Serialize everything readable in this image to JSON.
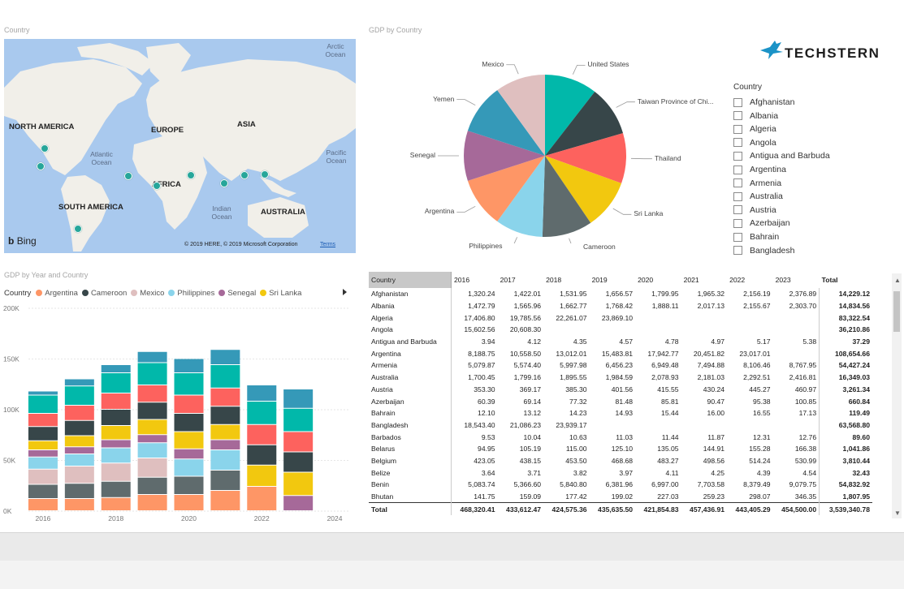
{
  "map": {
    "title": "Country",
    "continents": [
      "NORTH AMERICA",
      "EUROPE",
      "ASIA",
      "AFRICA",
      "SOUTH AMERICA",
      "AUSTRALIA"
    ],
    "oceans": [
      "Arctic Ocean",
      "Atlantic Ocean",
      "Pacific Ocean",
      "Indian Ocean"
    ],
    "bing_label": "Bing",
    "credit": "© 2019 HERE, © 2019 Microsoft Corporation",
    "terms": "Terms"
  },
  "pie": {
    "title": "GDP by Country",
    "chart_data": {
      "type": "pie",
      "categories": [
        "United States",
        "Taiwan Province of Chi...",
        "Thailand",
        "Sri Lanka",
        "Cameroon",
        "Philippines",
        "Argentina",
        "Senegal",
        "Yemen",
        "Mexico"
      ],
      "values": [
        10.5,
        10,
        10,
        10,
        10,
        9.5,
        10,
        10,
        10,
        10
      ],
      "colors": [
        "#01b8aa",
        "#374649",
        "#fd625e",
        "#f2c80f",
        "#5f6b6d",
        "#8ad4eb",
        "#fe9666",
        "#a66999",
        "#3599b8",
        "#dfbfbf"
      ]
    }
  },
  "logo": {
    "text": "TECHSTERN"
  },
  "slicer": {
    "title": "Country",
    "items": [
      "Afghanistan",
      "Albania",
      "Algeria",
      "Angola",
      "Antigua and Barbuda",
      "Argentina",
      "Armenia",
      "Australia",
      "Austria",
      "Azerbaijan",
      "Bahrain",
      "Bangladesh"
    ]
  },
  "bar": {
    "title": "GDP by Year and Country",
    "legend_title": "Country",
    "chart_data": {
      "type": "bar",
      "stacked": true,
      "x": [
        2016,
        2017,
        2018,
        2019,
        2020,
        2021,
        2022,
        2023
      ],
      "series": [
        {
          "name": "Argentina",
          "color": "#fe9666",
          "values": [
            12000,
            12000,
            13000,
            16000,
            16000,
            20000,
            24000,
            0
          ]
        },
        {
          "name": "",
          "color": "#5f6b6d",
          "values": [
            14000,
            15000,
            16000,
            17000,
            18000,
            20000,
            0,
            0
          ]
        },
        {
          "name": "",
          "color": "#dfbfbf",
          "values": [
            15000,
            17000,
            18000,
            19000,
            0,
            0,
            0,
            0
          ]
        },
        {
          "name": "",
          "color": "#8ad4eb",
          "values": [
            12000,
            12000,
            15000,
            15000,
            17000,
            20000,
            0,
            0
          ]
        },
        {
          "name": "",
          "color": "#a66999",
          "values": [
            7000,
            7000,
            8000,
            8000,
            10000,
            10000,
            0,
            15000
          ]
        },
        {
          "name": "",
          "color": "#f2c80f",
          "values": [
            9000,
            11000,
            14000,
            15000,
            17000,
            15000,
            21000,
            23000
          ]
        },
        {
          "name": "",
          "color": "#374649",
          "values": [
            14000,
            15000,
            16000,
            17000,
            18000,
            18000,
            20000,
            20000
          ]
        },
        {
          "name": "",
          "color": "#fd625e",
          "values": [
            13000,
            15000,
            16000,
            17000,
            18000,
            18000,
            20000,
            20000
          ]
        },
        {
          "name": "",
          "color": "#01b8aa",
          "values": [
            18000,
            19000,
            20000,
            22000,
            22000,
            23000,
            23000,
            23000
          ]
        },
        {
          "name": "",
          "color": "#3599b8",
          "values": [
            4000,
            7000,
            8000,
            11000,
            14000,
            15000,
            16000,
            19000
          ]
        }
      ],
      "legend": [
        "Argentina",
        "Cameroon",
        "Mexico",
        "Philippines",
        "Senegal",
        "Sri Lanka"
      ],
      "legend_colors": [
        "#fe9666",
        "#374649",
        "#dfbfbf",
        "#8ad4eb",
        "#a66999",
        "#f2c80f"
      ],
      "y_ticks": [
        "0K",
        "50K",
        "100K",
        "150K",
        "200K"
      ],
      "x_ticks": [
        "2016",
        "2018",
        "2020",
        "2022",
        "2024"
      ],
      "ylim": [
        0,
        200000
      ]
    }
  },
  "table": {
    "headers": [
      "Country",
      "2016",
      "2017",
      "2018",
      "2019",
      "2020",
      "2021",
      "2022",
      "2023",
      "Total"
    ],
    "rows": [
      [
        "Afghanistan",
        "1,320.24",
        "1,422.01",
        "1,531.95",
        "1,656.57",
        "1,799.95",
        "1,965.32",
        "2,156.19",
        "2,376.89",
        "14,229.12"
      ],
      [
        "Albania",
        "1,472.79",
        "1,565.96",
        "1,662.77",
        "1,768.42",
        "1,888.11",
        "2,017.13",
        "2,155.67",
        "2,303.70",
        "14,834.56"
      ],
      [
        "Algeria",
        "17,406.80",
        "19,785.56",
        "22,261.07",
        "23,869.10",
        "",
        "",
        "",
        "",
        "83,322.54"
      ],
      [
        "Angola",
        "15,602.56",
        "20,608.30",
        "",
        "",
        "",
        "",
        "",
        "",
        "36,210.86"
      ],
      [
        "Antigua and Barbuda",
        "3.94",
        "4.12",
        "4.35",
        "4.57",
        "4.78",
        "4.97",
        "5.17",
        "5.38",
        "37.29"
      ],
      [
        "Argentina",
        "8,188.75",
        "10,558.50",
        "13,012.01",
        "15,483.81",
        "17,942.77",
        "20,451.82",
        "23,017.01",
        "",
        "108,654.66"
      ],
      [
        "Armenia",
        "5,079.87",
        "5,574.40",
        "5,997.98",
        "6,456.23",
        "6,949.48",
        "7,494.88",
        "8,106.46",
        "8,767.95",
        "54,427.24"
      ],
      [
        "Australia",
        "1,700.45",
        "1,799.16",
        "1,895.55",
        "1,984.59",
        "2,078.93",
        "2,181.03",
        "2,292.51",
        "2,416.81",
        "16,349.03"
      ],
      [
        "Austria",
        "353.30",
        "369.17",
        "385.30",
        "401.56",
        "415.55",
        "430.24",
        "445.27",
        "460.97",
        "3,261.34"
      ],
      [
        "Azerbaijan",
        "60.39",
        "69.14",
        "77.32",
        "81.48",
        "85.81",
        "90.47",
        "95.38",
        "100.85",
        "660.84"
      ],
      [
        "Bahrain",
        "12.10",
        "13.12",
        "14.23",
        "14.93",
        "15.44",
        "16.00",
        "16.55",
        "17.13",
        "119.49"
      ],
      [
        "Bangladesh",
        "18,543.40",
        "21,086.23",
        "23,939.17",
        "",
        "",
        "",
        "",
        "",
        "63,568.80"
      ],
      [
        "Barbados",
        "9.53",
        "10.04",
        "10.63",
        "11.03",
        "11.44",
        "11.87",
        "12.31",
        "12.76",
        "89.60"
      ],
      [
        "Belarus",
        "94.95",
        "105.19",
        "115.00",
        "125.10",
        "135.05",
        "144.91",
        "155.28",
        "166.38",
        "1,041.86"
      ],
      [
        "Belgium",
        "423.05",
        "438.15",
        "453.50",
        "468.68",
        "483.27",
        "498.56",
        "514.24",
        "530.99",
        "3,810.44"
      ],
      [
        "Belize",
        "3.64",
        "3.71",
        "3.82",
        "3.97",
        "4.11",
        "4.25",
        "4.39",
        "4.54",
        "32.43"
      ],
      [
        "Benin",
        "5,083.74",
        "5,366.60",
        "5,840.80",
        "6,381.96",
        "6,997.00",
        "7,703.58",
        "8,379.49",
        "9,079.75",
        "54,832.92"
      ],
      [
        "Bhutan",
        "141.75",
        "159.09",
        "177.42",
        "199.02",
        "227.03",
        "259.23",
        "298.07",
        "346.35",
        "1,807.95"
      ]
    ],
    "total_row": [
      "Total",
      "468,320.41",
      "433,612.47",
      "424,575.36",
      "435,635.50",
      "421,854.83",
      "457,436.91",
      "443,405.29",
      "454,500.00",
      "3,539,340.78"
    ]
  }
}
